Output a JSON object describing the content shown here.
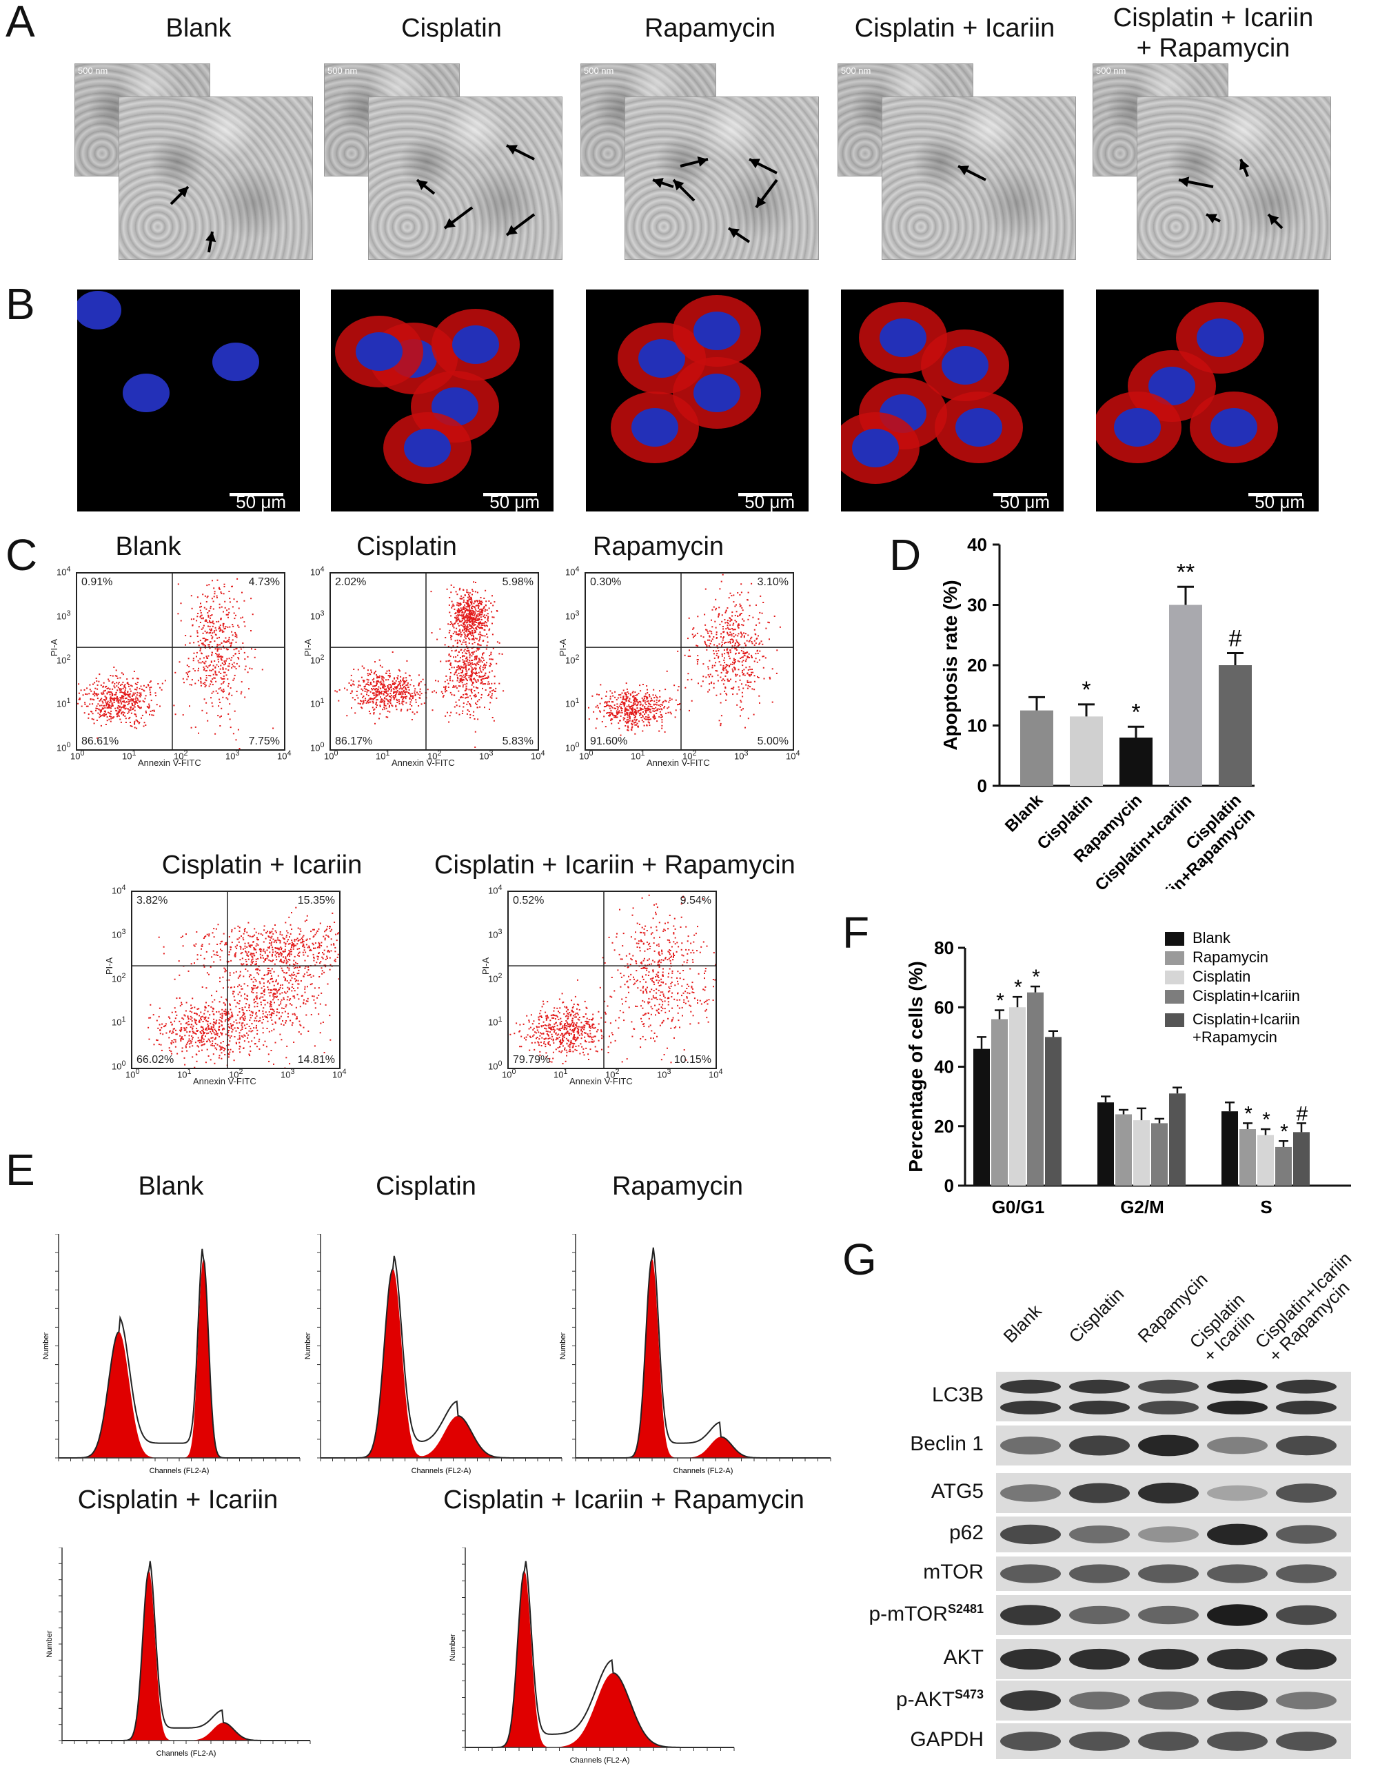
{
  "panel_letters": {
    "a": "A",
    "b": "B",
    "c": "C",
    "d": "D",
    "e": "E",
    "f": "F",
    "g": "G"
  },
  "panel_a": {
    "titles": [
      "Blank",
      "Cisplatin",
      "Rapamycin",
      "Cisplatin + Icariin",
      "Cisplatin + Icariin\n+ Rapamycin"
    ],
    "scale_label": "500 nm"
  },
  "panel_b": {
    "scale_label": "50 μm"
  },
  "panel_c": {
    "x_axis": "Annexin V-FITC",
    "y_axis": "PI-A",
    "tick_labels": [
      "10",
      "1",
      "2",
      "3",
      "4",
      "0"
    ],
    "plots": [
      {
        "title": "Blank",
        "ul": "0.91%",
        "ur": "4.73%",
        "ll": "86.61%",
        "lr": "7.75%"
      },
      {
        "title": "Cisplatin",
        "ul": "2.02%",
        "ur": "5.98%",
        "ll": "86.17%",
        "lr": "5.83%"
      },
      {
        "title": "Rapamycin",
        "ul": "0.30%",
        "ur": "3.10%",
        "ll": "91.60%",
        "lr": "5.00%"
      },
      {
        "title": "Cisplatin + Icariin",
        "ul": "3.82%",
        "ur": "15.35%",
        "ll": "66.02%",
        "lr": "14.81%"
      },
      {
        "title": "Cisplatin + Icariin + Rapamycin",
        "ul": "0.52%",
        "ur": "9.54%",
        "ll": "79.79%",
        "lr": "10.15%"
      }
    ]
  },
  "panel_e": {
    "titles": [
      "Blank",
      "Cisplatin",
      "Rapamycin",
      "Cisplatin + Icariin",
      "Cisplatin + Icariin + Rapamycin"
    ],
    "x_axis": "Channels (FL2-A)",
    "y_axis": "Number"
  },
  "panel_g": {
    "lanes": [
      "Blank",
      "Cisplatin",
      "Rapamycin",
      "Cisplatin\n+ Icariin",
      "Cisplatin+Icariin\n+ Rapamycin"
    ],
    "rows": [
      {
        "label": "LC3B",
        "intensity": [
          0.8,
          0.8,
          0.7,
          0.9,
          0.8
        ]
      },
      {
        "label": "Beclin 1",
        "intensity": [
          0.5,
          0.75,
          0.9,
          0.4,
          0.7
        ]
      },
      {
        "label": "ATG5",
        "intensity": [
          0.45,
          0.75,
          0.85,
          0.2,
          0.65
        ]
      },
      {
        "label": "p62",
        "intensity": [
          0.7,
          0.5,
          0.3,
          0.9,
          0.6
        ]
      },
      {
        "label": "mTOR",
        "intensity": [
          0.6,
          0.6,
          0.6,
          0.6,
          0.6
        ]
      },
      {
        "label": "p-mTOR",
        "sup": "S2481",
        "intensity": [
          0.8,
          0.55,
          0.55,
          0.95,
          0.7
        ]
      },
      {
        "label": "AKT",
        "intensity": [
          0.85,
          0.85,
          0.85,
          0.85,
          0.85
        ]
      },
      {
        "label": "p-AKT",
        "sup": "S473",
        "intensity": [
          0.8,
          0.5,
          0.55,
          0.7,
          0.45
        ]
      },
      {
        "label": "GAPDH",
        "intensity": [
          0.65,
          0.65,
          0.65,
          0.65,
          0.65
        ]
      }
    ]
  },
  "chart_data": [
    {
      "type": "bar",
      "panel": "D",
      "ylabel": "Apoptosis rate (%)",
      "ylim": [
        0,
        40
      ],
      "yticks": [
        0,
        10,
        20,
        30,
        40
      ],
      "categories": [
        "Blank",
        "Cisplatin",
        "Rapamycin",
        "Cisplatin+Icariin",
        "Cisplatin\n+Icariin+Rapamycin"
      ],
      "values": [
        12.5,
        11.5,
        8.0,
        30.0,
        20.0
      ],
      "errors": [
        2.2,
        2.0,
        1.8,
        3.0,
        2.0
      ],
      "annotations": [
        "",
        "*",
        "*",
        "**",
        "#"
      ],
      "colors": [
        "#8c8c8c",
        "#d0d0d0",
        "#111111",
        "#a9a9ae",
        "#666666"
      ]
    },
    {
      "type": "bar",
      "panel": "F",
      "ylabel": "Percentage of cells (%)",
      "ylim": [
        0,
        80
      ],
      "yticks": [
        0,
        20,
        40,
        60,
        80
      ],
      "categories": [
        "G0/G1",
        "G2/M",
        "S"
      ],
      "series": [
        {
          "name": "Blank",
          "color": "#111111",
          "values": [
            46,
            28,
            25
          ],
          "errors": [
            4,
            2,
            3
          ],
          "annotations": [
            "",
            "",
            ""
          ]
        },
        {
          "name": "Rapamycin",
          "color": "#9a9a9a",
          "values": [
            56,
            24,
            19
          ],
          "errors": [
            3,
            1.5,
            2
          ],
          "annotations": [
            "*",
            "",
            "*"
          ]
        },
        {
          "name": "Cisplatin",
          "color": "#d6d6d6",
          "values": [
            60,
            22,
            17
          ],
          "errors": [
            3.5,
            4,
            2
          ],
          "annotations": [
            "*",
            "",
            "*"
          ]
        },
        {
          "name": "Cisplatin+Icariin",
          "color": "#7d7d7d",
          "values": [
            65,
            21,
            13
          ],
          "errors": [
            2,
            1.5,
            2
          ],
          "annotations": [
            "*",
            "",
            "*"
          ]
        },
        {
          "name": "Cisplatin+Icariin\n+Rapamycin",
          "color": "#555555",
          "values": [
            50,
            31,
            18
          ],
          "errors": [
            2,
            2,
            3
          ],
          "annotations": [
            "",
            "",
            "#"
          ]
        }
      ]
    }
  ]
}
